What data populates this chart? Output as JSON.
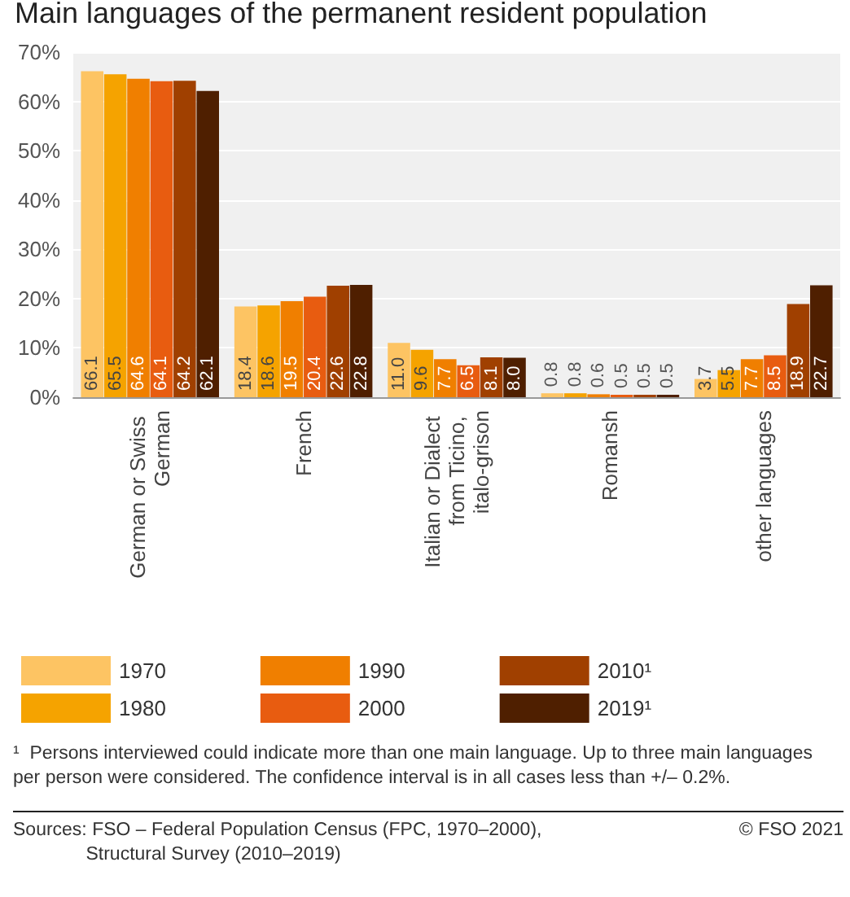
{
  "chart_data": {
    "type": "bar",
    "title": "Main languages of the permanent resident population",
    "categories": [
      "German or Swiss German",
      "French",
      "Italian or Dialect from Ticino, italo-grison",
      "Romansh",
      "other languages"
    ],
    "series": [
      {
        "name": "1970",
        "color": "#fdc463",
        "values": [
          66.1,
          18.4,
          11.0,
          0.8,
          3.7
        ]
      },
      {
        "name": "1980",
        "color": "#f5a300",
        "values": [
          65.5,
          18.6,
          9.6,
          0.8,
          5.5
        ]
      },
      {
        "name": "1990",
        "color": "#f07f00",
        "values": [
          64.6,
          19.5,
          7.7,
          0.6,
          7.7
        ]
      },
      {
        "name": "2000",
        "color": "#e85c10",
        "values": [
          64.1,
          20.4,
          6.5,
          0.5,
          8.5
        ]
      },
      {
        "name": "2010¹",
        "color": "#a04000",
        "values": [
          64.2,
          22.6,
          8.1,
          0.5,
          18.9
        ]
      },
      {
        "name": "2019¹",
        "color": "#4f1f00",
        "values": [
          62.1,
          22.8,
          8.0,
          0.5,
          22.7
        ]
      }
    ],
    "ylim": [
      0,
      70
    ],
    "yticks": [
      {
        "value": 0,
        "label": "0%"
      },
      {
        "value": 10,
        "label": "10%"
      },
      {
        "value": 20,
        "label": "20%"
      },
      {
        "value": 30,
        "label": "30%"
      },
      {
        "value": 40,
        "label": "40%"
      },
      {
        "value": 50,
        "label": "50%"
      },
      {
        "value": 60,
        "label": "60%"
      },
      {
        "value": 70,
        "label": "70%"
      }
    ],
    "grid": "y",
    "legend": "bottom",
    "value_labels": [
      [
        "66.1",
        "18.4",
        "11.0",
        "0.8",
        "3.7"
      ],
      [
        "65.5",
        "18.6",
        "9.6",
        "0.8",
        "5.5"
      ],
      [
        "64.6",
        "19.5",
        "7.7",
        "0.6",
        "7.7"
      ],
      [
        "64.1",
        "20.4",
        "6.5",
        "0.5",
        "8.5"
      ],
      [
        "64.2",
        "22.6",
        "8.1",
        "0.5",
        "18.9"
      ],
      [
        "62.1",
        "22.8",
        "8.0",
        "0.5",
        "22.7"
      ]
    ],
    "annotations": [
      "¹  Persons interviewed could indicate more than one main language. Up to three main languages per person were considered. The confidence interval is in all cases less than +/– 0.2%.",
      "Sources: FSO – Federal Population Census (FPC, 1970–2000),\n              Structural Survey (2010–2019)",
      "© FSO 2021"
    ]
  }
}
